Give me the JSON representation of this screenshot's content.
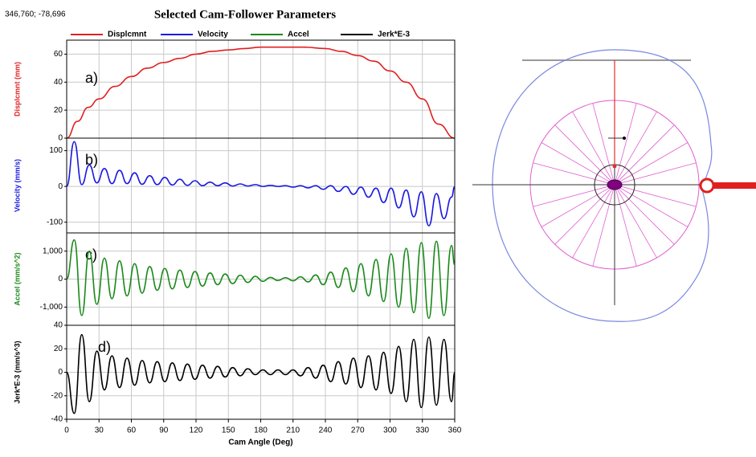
{
  "page": {
    "title": "Selected Cam-Follower Parameters",
    "coordinates": "346,760; -78,696"
  },
  "chart_data": [
    {
      "type": "line",
      "ylabel": "Displcmnt (mm)",
      "annotation": "a)",
      "x": [
        0,
        10,
        20,
        30,
        45,
        60,
        75,
        90,
        105,
        120,
        135,
        150,
        165,
        180,
        195,
        210,
        220,
        240,
        255,
        270,
        285,
        300,
        315,
        330,
        345,
        360
      ],
      "series": [
        {
          "name": "Displcmnt",
          "color": "#e02020",
          "values": [
            0,
            12,
            22,
            28,
            37,
            44,
            50,
            54,
            57,
            60,
            62,
            63,
            64,
            65,
            65,
            65,
            65,
            64,
            62,
            59,
            55,
            48,
            40,
            28,
            10,
            0
          ]
        }
      ],
      "ylim": [
        0,
        70
      ],
      "yticks": [
        0,
        20,
        40,
        60
      ]
    },
    {
      "type": "line",
      "ylabel": "Velocity (mm/s)",
      "annotation": "b)",
      "x": [
        0,
        7,
        14,
        21,
        28,
        35,
        42,
        49,
        56,
        63,
        70,
        77,
        84,
        91,
        98,
        105,
        112,
        119,
        126,
        133,
        140,
        147,
        154,
        161,
        168,
        175,
        182,
        189,
        196,
        203,
        210,
        217,
        224,
        231,
        238,
        245,
        252,
        259,
        266,
        273,
        280,
        287,
        294,
        301,
        308,
        315,
        322,
        329,
        336,
        343,
        350,
        357,
        360
      ],
      "series": [
        {
          "name": "Velocity",
          "color": "#1a1adf",
          "values": [
            0,
            125,
            5,
            60,
            10,
            50,
            8,
            45,
            8,
            38,
            6,
            30,
            5,
            25,
            4,
            20,
            3,
            16,
            2,
            12,
            2,
            10,
            1,
            7,
            1,
            5,
            0,
            3,
            0,
            2,
            -2,
            2,
            -4,
            2,
            -8,
            2,
            -14,
            0,
            -22,
            -2,
            -30,
            -5,
            -45,
            -5,
            -60,
            -10,
            -85,
            -15,
            -110,
            -20,
            -90,
            -30,
            0
          ]
        }
      ],
      "ylim": [
        -130,
        135
      ],
      "yticks": [
        -100,
        0,
        100
      ]
    },
    {
      "type": "line",
      "ylabel": "Accel (mm/s^2)",
      "annotation": "c)",
      "x": [
        0,
        7,
        14,
        21,
        28,
        35,
        42,
        49,
        56,
        63,
        70,
        77,
        84,
        91,
        98,
        105,
        112,
        119,
        126,
        133,
        140,
        147,
        154,
        161,
        168,
        175,
        182,
        189,
        196,
        203,
        210,
        217,
        224,
        231,
        238,
        245,
        252,
        259,
        266,
        273,
        280,
        287,
        294,
        301,
        308,
        315,
        322,
        329,
        336,
        343,
        350,
        357,
        360
      ],
      "series": [
        {
          "name": "Accel",
          "color": "#1a8a1a",
          "values": [
            0,
            1400,
            -1300,
            1000,
            -900,
            750,
            -700,
            650,
            -600,
            550,
            -500,
            450,
            -400,
            380,
            -350,
            320,
            -300,
            270,
            -250,
            220,
            -200,
            180,
            -160,
            140,
            -120,
            100,
            -80,
            60,
            -50,
            50,
            -60,
            80,
            -100,
            150,
            -200,
            250,
            -300,
            400,
            -450,
            550,
            -600,
            700,
            -800,
            900,
            -1000,
            1100,
            -1200,
            1300,
            -1400,
            1350,
            -1300,
            1200,
            500
          ]
        }
      ],
      "ylim": [
        -1650,
        1650
      ],
      "yticks": [
        {
          "value": -1000,
          "label": "-1,000"
        },
        0,
        {
          "value": 1000,
          "label": "1,000"
        }
      ]
    },
    {
      "type": "line",
      "ylabel": "Jerk*E-3 (mm/s^3)",
      "annotation": "d)",
      "xlabel": "Cam Angle (Deg)",
      "x": [
        0,
        7,
        14,
        21,
        28,
        35,
        42,
        49,
        56,
        63,
        70,
        77,
        84,
        91,
        98,
        105,
        112,
        119,
        126,
        133,
        140,
        147,
        154,
        161,
        168,
        175,
        182,
        189,
        196,
        203,
        210,
        217,
        224,
        231,
        238,
        245,
        252,
        259,
        266,
        273,
        280,
        287,
        294,
        301,
        308,
        315,
        322,
        329,
        336,
        343,
        350,
        357,
        360
      ],
      "series": [
        {
          "name": "Jerk*E-3",
          "color": "#000000",
          "values": [
            0,
            -35,
            32,
            -25,
            18,
            -15,
            14,
            -13,
            12,
            -11,
            10,
            -9,
            9,
            -8,
            8,
            -7,
            7,
            -6,
            6,
            -5,
            5,
            -4,
            4,
            -3,
            3,
            -2,
            2,
            -2,
            2,
            -2,
            2,
            -3,
            4,
            -5,
            6,
            -8,
            9,
            -10,
            12,
            -13,
            14,
            -15,
            17,
            -18,
            22,
            -25,
            28,
            -30,
            30,
            -28,
            28,
            -25,
            0
          ]
        }
      ],
      "ylim": [
        -40,
        40
      ],
      "yticks": [
        -40,
        -20,
        0,
        20,
        40
      ],
      "xlim": [
        0,
        360
      ],
      "xticks": [
        0,
        30,
        60,
        90,
        120,
        150,
        180,
        210,
        240,
        270,
        300,
        330,
        360
      ]
    }
  ]
}
